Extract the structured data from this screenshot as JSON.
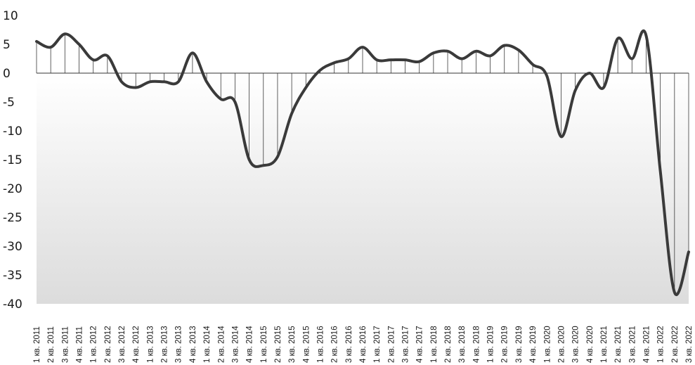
{
  "chart_data": {
    "type": "area",
    "title": "",
    "xlabel": "",
    "ylabel": "",
    "ylim": [
      -40,
      10
    ],
    "yticks": [
      10,
      5,
      0,
      -5,
      -10,
      -15,
      -20,
      -25,
      -30,
      -35,
      -40
    ],
    "categories": [
      "1 кв. 2011",
      "2 кв. 2011",
      "3 кв. 2011",
      "4 кв. 2011",
      "1 кв. 2012",
      "2 кв. 2012",
      "3 кв. 2012",
      "4 кв. 2012",
      "1 кв. 2013",
      "2 кв. 2013",
      "3 кв. 2013",
      "4 кв. 2013",
      "1 кв. 2014",
      "2 кв. 2014",
      "3 кв. 2014",
      "4 кв. 2014",
      "1 кв. 2015",
      "2 кв. 2015",
      "3 кв. 2015",
      "4 кв. 2015",
      "1 кв. 2016",
      "2 кв. 2016",
      "3 кв. 2016",
      "4 кв. 2016",
      "1 кв. 2017",
      "2 кв. 2017",
      "3 кв. 2017",
      "4 кв. 2017",
      "1 кв. 2018",
      "2 кв. 2018",
      "3 кв. 2018",
      "4 кв. 2018",
      "1 кв. 2019",
      "2 кв. 2019",
      "3 кв. 2019",
      "4 кв. 2019",
      "1 кв. 2020",
      "2 кв. 2020",
      "3 кв. 2020",
      "4 кв. 2020",
      "1 кв. 2021",
      "2 кв. 2021",
      "3 кв. 2021",
      "4 кв. 2021",
      "1 кв. 2022",
      "2 кв. 2022",
      "3 кв. 2022"
    ],
    "values": [
      5.5,
      4.5,
      6.8,
      5.0,
      2.3,
      3.0,
      -1.5,
      -2.5,
      -1.5,
      -1.5,
      -1.5,
      3.5,
      -1.5,
      -4.5,
      -5.0,
      -15.0,
      -16.0,
      -14.5,
      -7.0,
      -2.5,
      0.5,
      1.8,
      2.5,
      4.5,
      2.3,
      2.3,
      2.3,
      2.0,
      3.5,
      3.8,
      2.5,
      3.8,
      3.0,
      4.8,
      4.0,
      1.5,
      -0.5,
      -11.0,
      -3.0,
      0.0,
      -2.5,
      6.0,
      2.5,
      6.5,
      -17.0,
      -38.0,
      -31.0
    ],
    "colors": {
      "line": "#3a3a3a",
      "fill_top": "#ffffff",
      "fill_bottom": "#dcdcdc",
      "drop_lines": "#3a3a3a",
      "zero_line": "#333333"
    },
    "grid": false,
    "legend": "none",
    "drop_lines": true
  }
}
